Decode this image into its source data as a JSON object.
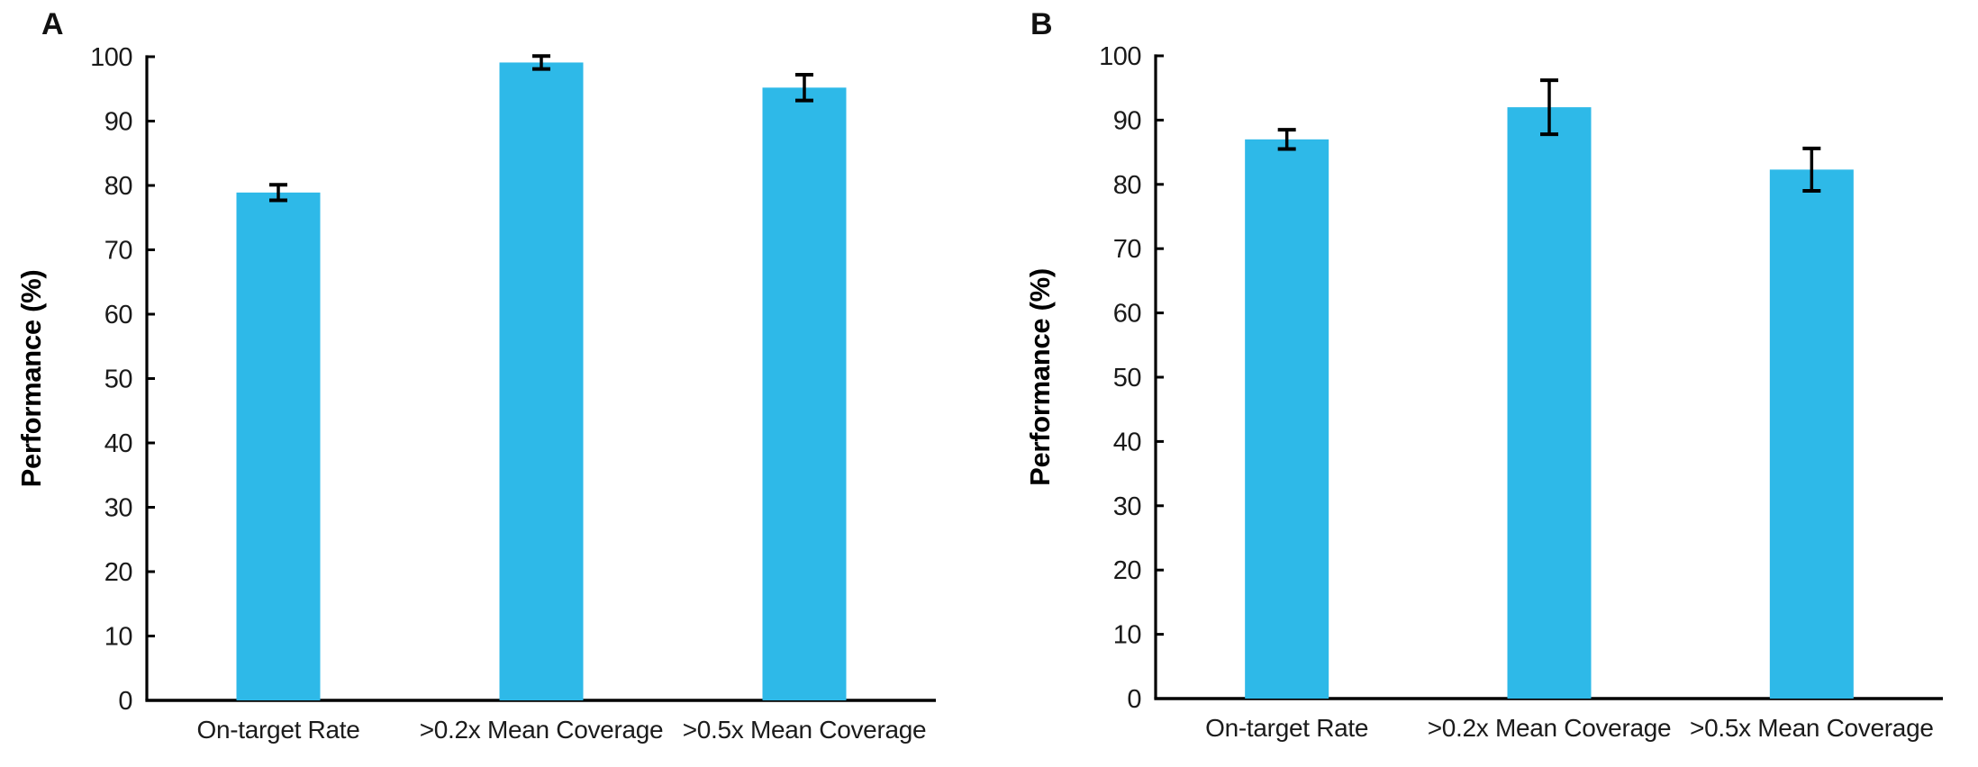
{
  "figure": {
    "background": "#ffffff"
  },
  "panels": [
    {
      "letter": "A"
    },
    {
      "letter": "B"
    }
  ],
  "chart_data": [
    {
      "type": "bar",
      "panel_label": "A",
      "title": "",
      "categories": [
        "On-target Rate",
        ">0.2x Mean Coverage",
        ">0.5x Mean Coverage"
      ],
      "values": [
        78.9,
        99.1,
        95.2
      ],
      "errors": [
        1.2,
        1.0,
        2.0
      ],
      "xlabel": "",
      "ylabel": "Performance (%)",
      "ylim": [
        0,
        100
      ],
      "ytick_step": 10,
      "ytick_labels": [
        "0",
        "10",
        "20",
        "30",
        "40",
        "50",
        "60",
        "70",
        "80",
        "90",
        "100"
      ],
      "bar_color": "#2EB9E8",
      "error_color": "#000000",
      "axis_color": "#000000",
      "grid": false,
      "legend": false
    },
    {
      "type": "bar",
      "panel_label": "B",
      "title": "",
      "categories": [
        "On-target Rate",
        ">0.2x Mean Coverage",
        ">0.5x Mean Coverage"
      ],
      "values": [
        87.0,
        92.0,
        82.3
      ],
      "errors": [
        1.5,
        4.2,
        3.3
      ],
      "xlabel": "",
      "ylabel": "Performance (%)",
      "ylim": [
        0,
        100
      ],
      "ytick_step": 10,
      "ytick_labels": [
        "0",
        "10",
        "20",
        "30",
        "40",
        "50",
        "60",
        "70",
        "80",
        "90",
        "100"
      ],
      "bar_color": "#2EB9E8",
      "error_color": "#000000",
      "axis_color": "#000000",
      "grid": false,
      "legend": false
    }
  ]
}
